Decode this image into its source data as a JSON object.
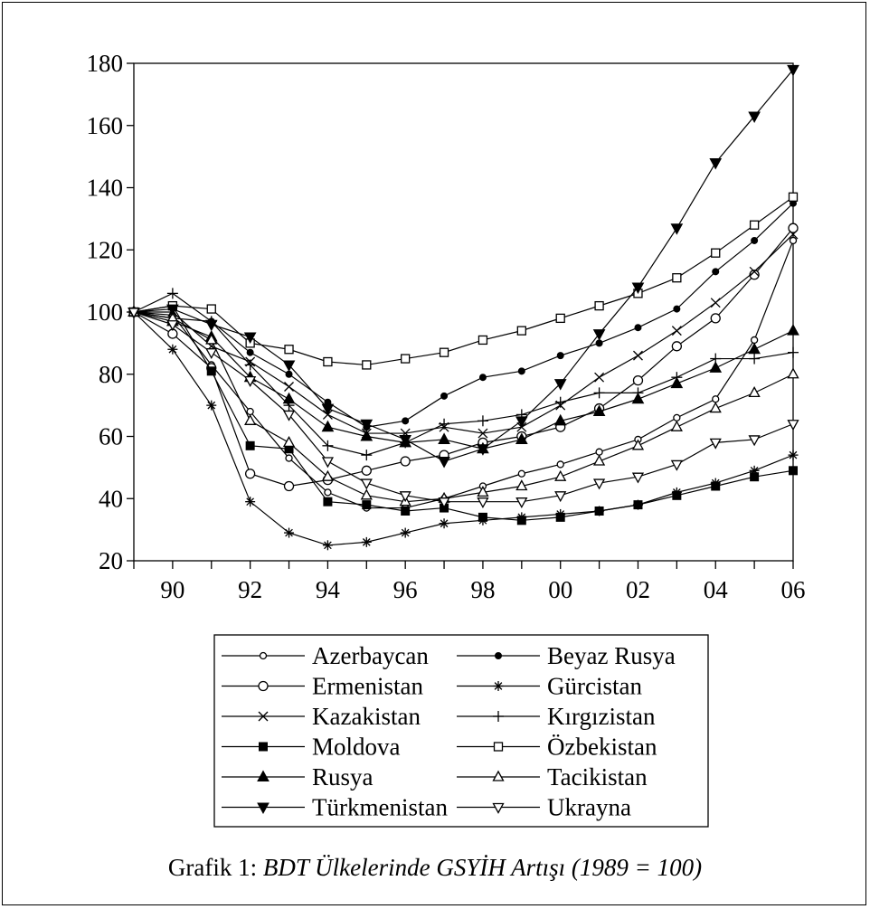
{
  "caption": {
    "label": "Grafik 1:",
    "title": "BDT Ülkelerinde GSYİH Artışı (1989 = 100)"
  },
  "chart_data": {
    "type": "line",
    "x": [
      1989,
      1990,
      1991,
      1992,
      1993,
      1994,
      1995,
      1996,
      1997,
      1998,
      1999,
      2000,
      2001,
      2002,
      2003,
      2004,
      2005,
      2006
    ],
    "x_tick_values": [
      1990,
      1992,
      1994,
      1996,
      1998,
      2000,
      2002,
      2004,
      2006
    ],
    "x_tick_labels": [
      "90",
      "92",
      "94",
      "96",
      "98",
      "00",
      "02",
      "04",
      "06"
    ],
    "y_ticks": [
      20,
      40,
      60,
      80,
      100,
      120,
      140,
      160,
      180
    ],
    "ylim": [
      20,
      180
    ],
    "xlim": [
      1989,
      2006
    ],
    "grid": false,
    "legend_position": "bottom",
    "series": [
      {
        "name": "Azerbaycan",
        "marker": "circle-open-small",
        "values": [
          100,
          99,
          83,
          68,
          53,
          42,
          37,
          37,
          40,
          44,
          48,
          51,
          55,
          59,
          66,
          72,
          91,
          123
        ]
      },
      {
        "name": "Beyaz Rusya",
        "marker": "circle-filled",
        "values": [
          100,
          98,
          97,
          87,
          80,
          71,
          63,
          65,
          73,
          79,
          81,
          86,
          90,
          95,
          101,
          113,
          123,
          135
        ]
      },
      {
        "name": "Ermenistan",
        "marker": "circle-open",
        "values": [
          100,
          93,
          82,
          48,
          44,
          46,
          49,
          52,
          54,
          58,
          60,
          63,
          69,
          78,
          89,
          98,
          112,
          127
        ]
      },
      {
        "name": "Gürcistan",
        "marker": "asterisk",
        "values": [
          100,
          88,
          70,
          39,
          29,
          25,
          26,
          29,
          32,
          33,
          34,
          35,
          36,
          38,
          42,
          45,
          49,
          54
        ]
      },
      {
        "name": "Kazakistan",
        "marker": "x",
        "values": [
          100,
          100,
          89,
          84,
          76,
          67,
          61,
          61,
          63,
          61,
          63,
          70,
          79,
          86,
          94,
          103,
          113,
          125
        ]
      },
      {
        "name": "Kırgızistan",
        "marker": "plus",
        "values": [
          100,
          106,
          97,
          83,
          70,
          57,
          54,
          58,
          64,
          65,
          67,
          71,
          74,
          74,
          79,
          85,
          85,
          87
        ]
      },
      {
        "name": "Moldova",
        "marker": "square-filled",
        "values": [
          100,
          102,
          81,
          57,
          56,
          39,
          38,
          36,
          37,
          34,
          33,
          34,
          36,
          38,
          41,
          44,
          47,
          49
        ]
      },
      {
        "name": "Özbekistan",
        "marker": "square-open",
        "values": [
          100,
          102,
          101,
          90,
          88,
          84,
          83,
          85,
          87,
          91,
          94,
          98,
          102,
          106,
          111,
          119,
          128,
          137
        ]
      },
      {
        "name": "Rusya",
        "marker": "triangle-up-filled",
        "values": [
          100,
          97,
          92,
          79,
          72,
          63,
          60,
          58,
          59,
          56,
          59,
          65,
          68,
          72,
          77,
          82,
          88,
          94
        ]
      },
      {
        "name": "Tacikistan",
        "marker": "triangle-up-open",
        "values": [
          100,
          98,
          91,
          65,
          58,
          47,
          41,
          39,
          40,
          42,
          44,
          47,
          52,
          57,
          63,
          69,
          74,
          80
        ]
      },
      {
        "name": "Türkmenistan",
        "marker": "triangle-down-filled",
        "values": [
          100,
          101,
          96,
          92,
          83,
          69,
          64,
          59,
          52,
          56,
          65,
          77,
          93,
          108,
          127,
          148,
          163,
          178
        ]
      },
      {
        "name": "Ukrayna",
        "marker": "triangle-down-open",
        "values": [
          100,
          96,
          87,
          78,
          67,
          52,
          45,
          41,
          39,
          39,
          39,
          41,
          45,
          47,
          51,
          58,
          59,
          64
        ]
      }
    ]
  }
}
